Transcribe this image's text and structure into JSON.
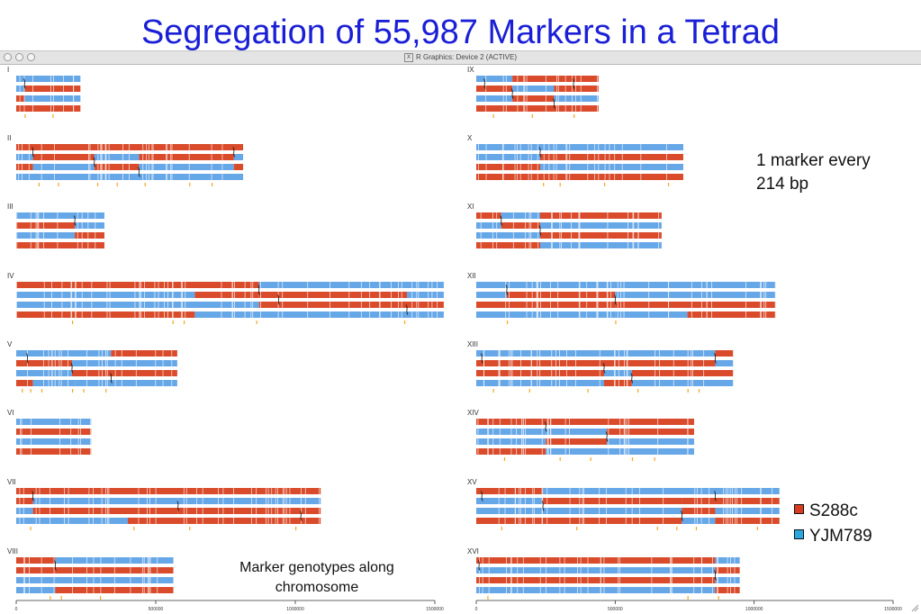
{
  "page_title": "Segregation of 55,987 Markers in a Tetrad",
  "window": {
    "title": "R Graphics: Device 2 (ACTIVE)",
    "title_icon": "x11-icon"
  },
  "annotation_density": [
    "1 marker every",
    "214 bp"
  ],
  "caption": "Marker genotypes along chromosome",
  "legend": [
    {
      "label": "S288c",
      "color": "#d93b1f"
    },
    {
      "label": "YJM789",
      "color": "#2ba7e0"
    }
  ],
  "colors": {
    "S288c": "#d94b2b",
    "YJM789": "#66a7e8",
    "crossover": "#111111",
    "tick": "#f5a623"
  },
  "chart_data": {
    "type": "heatmap",
    "x_axis": {
      "ticks": [
        0,
        500000,
        1000000,
        1500000
      ],
      "tick_labels": [
        "0",
        "500000",
        "1000000",
        "1500000"
      ],
      "xlim": [
        0,
        1500000
      ]
    },
    "strands_per_chromosome": 4,
    "chromosomes": [
      {
        "name": "I",
        "length": 230000,
        "tracks": [
          [
            [
              0,
              230000,
              "Y"
            ]
          ],
          [
            [
              0,
              30000,
              "Y"
            ],
            [
              30000,
              230000,
              "S"
            ]
          ],
          [
            [
              0,
              30000,
              "S"
            ],
            [
              30000,
              230000,
              "Y"
            ]
          ],
          [
            [
              0,
              230000,
              "S"
            ]
          ]
        ],
        "crossovers": [
          30000
        ],
        "conversions": [
          30000,
          130000
        ]
      },
      {
        "name": "II",
        "length": 813000,
        "tracks": [
          [
            [
              0,
              813000,
              "S"
            ]
          ],
          [
            [
              0,
              60000,
              "Y"
            ],
            [
              60000,
              280000,
              "S"
            ],
            [
              280000,
              440000,
              "Y"
            ],
            [
              440000,
              780000,
              "S"
            ],
            [
              780000,
              813000,
              "Y"
            ]
          ],
          [
            [
              0,
              60000,
              "S"
            ],
            [
              60000,
              280000,
              "Y"
            ],
            [
              280000,
              440000,
              "S"
            ],
            [
              440000,
              780000,
              "Y"
            ],
            [
              780000,
              813000,
              "S"
            ]
          ],
          [
            [
              0,
              813000,
              "Y"
            ]
          ]
        ],
        "crossovers": [
          60000,
          280000,
          440000,
          780000
        ],
        "conversions": [
          80000,
          150000,
          290000,
          360000,
          460000,
          620000,
          700000
        ]
      },
      {
        "name": "III",
        "length": 316000,
        "tracks": [
          [
            [
              0,
              316000,
              "Y"
            ]
          ],
          [
            [
              0,
              210000,
              "S"
            ],
            [
              210000,
              316000,
              "Y"
            ]
          ],
          [
            [
              0,
              210000,
              "Y"
            ],
            [
              210000,
              316000,
              "S"
            ]
          ],
          [
            [
              0,
              316000,
              "S"
            ]
          ]
        ],
        "crossovers": [
          210000
        ],
        "conversions": []
      },
      {
        "name": "IV",
        "length": 1532000,
        "tracks": [
          [
            [
              0,
              870000,
              "S"
            ],
            [
              870000,
              1400000,
              "Y"
            ],
            [
              1400000,
              1532000,
              "Y"
            ]
          ],
          [
            [
              0,
              640000,
              "Y"
            ],
            [
              640000,
              870000,
              "S"
            ],
            [
              870000,
              1400000,
              "S"
            ],
            [
              1400000,
              1532000,
              "Y"
            ]
          ],
          [
            [
              0,
              870000,
              "Y"
            ],
            [
              870000,
              940000,
              "S"
            ],
            [
              940000,
              1532000,
              "S"
            ]
          ],
          [
            [
              0,
              540000,
              "S"
            ],
            [
              540000,
              640000,
              "S"
            ],
            [
              640000,
              940000,
              "Y"
            ],
            [
              940000,
              1532000,
              "Y"
            ]
          ]
        ],
        "crossovers": [
          870000,
          940000,
          1400000
        ],
        "conversions": [
          200000,
          560000,
          600000,
          860000,
          1390000
        ]
      },
      {
        "name": "V",
        "length": 577000,
        "tracks": [
          [
            [
              0,
              340000,
              "Y"
            ],
            [
              340000,
              577000,
              "S"
            ]
          ],
          [
            [
              0,
              200000,
              "S"
            ],
            [
              200000,
              577000,
              "Y"
            ]
          ],
          [
            [
              0,
              200000,
              "Y"
            ],
            [
              200000,
              577000,
              "S"
            ]
          ],
          [
            [
              0,
              60000,
              "S"
            ],
            [
              60000,
              210000,
              "Y"
            ],
            [
              210000,
              577000,
              "Y"
            ]
          ]
        ],
        "crossovers": [
          40000,
          200000,
          340000
        ],
        "conversions": [
          20000,
          50000,
          90000,
          200000,
          240000,
          320000
        ]
      },
      {
        "name": "VI",
        "length": 270000,
        "tracks": [
          [
            [
              0,
              270000,
              "Y"
            ]
          ],
          [
            [
              0,
              270000,
              "S"
            ]
          ],
          [
            [
              0,
              270000,
              "Y"
            ]
          ],
          [
            [
              0,
              270000,
              "S"
            ]
          ]
        ],
        "crossovers": [],
        "conversions": []
      },
      {
        "name": "VII",
        "length": 1091000,
        "tracks": [
          [
            [
              0,
              1091000,
              "S"
            ]
          ],
          [
            [
              0,
              60000,
              "S"
            ],
            [
              60000,
              580000,
              "Y"
            ],
            [
              580000,
              1020000,
              "Y"
            ],
            [
              1020000,
              1091000,
              "Y"
            ]
          ],
          [
            [
              0,
              60000,
              "Y"
            ],
            [
              60000,
              580000,
              "S"
            ],
            [
              580000,
              1020000,
              "S"
            ],
            [
              1020000,
              1091000,
              "S"
            ]
          ],
          [
            [
              0,
              400000,
              "Y"
            ],
            [
              400000,
              1091000,
              "S"
            ]
          ]
        ],
        "crossovers": [
          60000,
          580000,
          1020000
        ],
        "conversions": [
          50000,
          420000,
          620000,
          1000000
        ]
      },
      {
        "name": "VIII",
        "length": 563000,
        "tracks": [
          [
            [
              0,
              140000,
              "S"
            ],
            [
              140000,
              563000,
              "Y"
            ]
          ],
          [
            [
              0,
              140000,
              "S"
            ],
            [
              140000,
              563000,
              "S"
            ]
          ],
          [
            [
              0,
              140000,
              "Y"
            ],
            [
              140000,
              563000,
              "Y"
            ]
          ],
          [
            [
              0,
              140000,
              "Y"
            ],
            [
              140000,
              563000,
              "S"
            ]
          ]
        ],
        "crossovers": [
          140000
        ],
        "conversions": [
          120000,
          160000,
          300000
        ]
      },
      {
        "name": "IX",
        "length": 440000,
        "tracks": [
          [
            [
              0,
              130000,
              "Y"
            ],
            [
              130000,
              440000,
              "S"
            ]
          ],
          [
            [
              0,
              130000,
              "S"
            ],
            [
              130000,
              280000,
              "Y"
            ],
            [
              280000,
              440000,
              "S"
            ]
          ],
          [
            [
              0,
              130000,
              "Y"
            ],
            [
              130000,
              280000,
              "S"
            ],
            [
              280000,
              440000,
              "Y"
            ]
          ],
          [
            [
              0,
              440000,
              "S"
            ]
          ]
        ],
        "crossovers": [
          30000,
          130000,
          280000,
          350000
        ],
        "conversions": [
          60000,
          200000,
          350000
        ]
      },
      {
        "name": "X",
        "length": 745000,
        "tracks": [
          [
            [
              0,
              745000,
              "Y"
            ]
          ],
          [
            [
              0,
              230000,
              "Y"
            ],
            [
              230000,
              745000,
              "S"
            ]
          ],
          [
            [
              0,
              230000,
              "S"
            ],
            [
              230000,
              745000,
              "Y"
            ]
          ],
          [
            [
              0,
              745000,
              "S"
            ]
          ]
        ],
        "crossovers": [
          230000
        ],
        "conversions": [
          240000,
          300000,
          460000,
          690000
        ]
      },
      {
        "name": "XI",
        "length": 667000,
        "tracks": [
          [
            [
              0,
              90000,
              "S"
            ],
            [
              90000,
              230000,
              "Y"
            ],
            [
              230000,
              667000,
              "S"
            ]
          ],
          [
            [
              0,
              90000,
              "Y"
            ],
            [
              90000,
              230000,
              "S"
            ],
            [
              230000,
              667000,
              "Y"
            ]
          ],
          [
            [
              0,
              230000,
              "Y"
            ],
            [
              230000,
              667000,
              "S"
            ]
          ],
          [
            [
              0,
              230000,
              "S"
            ],
            [
              230000,
              667000,
              "Y"
            ]
          ]
        ],
        "crossovers": [
          90000,
          230000
        ],
        "conversions": []
      },
      {
        "name": "XII",
        "length": 1078000,
        "tracks": [
          [
            [
              0,
              110000,
              "Y"
            ],
            [
              110000,
              1078000,
              "Y"
            ]
          ],
          [
            [
              0,
              110000,
              "Y"
            ],
            [
              110000,
              500000,
              "S"
            ],
            [
              500000,
              1078000,
              "Y"
            ]
          ],
          [
            [
              0,
              500000,
              "S"
            ],
            [
              500000,
              1078000,
              "S"
            ]
          ],
          [
            [
              0,
              500000,
              "Y"
            ],
            [
              500000,
              760000,
              "Y"
            ],
            [
              760000,
              1078000,
              "S"
            ]
          ]
        ],
        "crossovers": [
          110000,
          500000
        ],
        "conversions": [
          110000,
          500000
        ]
      },
      {
        "name": "XIII",
        "length": 924000,
        "tracks": [
          [
            [
              0,
              860000,
              "Y"
            ],
            [
              860000,
              924000,
              "S"
            ]
          ],
          [
            [
              0,
              860000,
              "S"
            ],
            [
              860000,
              924000,
              "Y"
            ]
          ],
          [
            [
              0,
              460000,
              "S"
            ],
            [
              460000,
              560000,
              "Y"
            ],
            [
              560000,
              924000,
              "S"
            ]
          ],
          [
            [
              0,
              460000,
              "Y"
            ],
            [
              460000,
              560000,
              "S"
            ],
            [
              560000,
              924000,
              "Y"
            ]
          ]
        ],
        "crossovers": [
          20000,
          460000,
          560000,
          860000
        ],
        "conversions": [
          60000,
          190000,
          400000,
          580000,
          760000,
          800000
        ]
      },
      {
        "name": "XIV",
        "length": 784000,
        "tracks": [
          [
            [
              0,
              784000,
              "S"
            ]
          ],
          [
            [
              0,
              470000,
              "Y"
            ],
            [
              470000,
              784000,
              "S"
            ]
          ],
          [
            [
              0,
              250000,
              "Y"
            ],
            [
              250000,
              470000,
              "S"
            ],
            [
              470000,
              784000,
              "Y"
            ]
          ],
          [
            [
              0,
              250000,
              "S"
            ],
            [
              250000,
              784000,
              "Y"
            ]
          ]
        ],
        "crossovers": [
          250000,
          470000
        ],
        "conversions": [
          100000,
          300000,
          410000,
          560000,
          640000
        ]
      },
      {
        "name": "XV",
        "length": 1091000,
        "tracks": [
          [
            [
              0,
              240000,
              "S"
            ],
            [
              240000,
              1091000,
              "Y"
            ]
          ],
          [
            [
              0,
              240000,
              "Y"
            ],
            [
              240000,
              740000,
              "S"
            ],
            [
              740000,
              1091000,
              "S"
            ]
          ],
          [
            [
              0,
              740000,
              "Y"
            ],
            [
              740000,
              860000,
              "S"
            ],
            [
              860000,
              1091000,
              "Y"
            ]
          ],
          [
            [
              0,
              740000,
              "S"
            ],
            [
              740000,
              860000,
              "Y"
            ],
            [
              860000,
              1091000,
              "S"
            ]
          ]
        ],
        "crossovers": [
          20000,
          240000,
          740000,
          860000
        ],
        "conversions": [
          90000,
          360000,
          650000,
          720000,
          790000,
          1010000
        ]
      },
      {
        "name": "XVI",
        "length": 948000,
        "tracks": [
          [
            [
              0,
              860000,
              "S"
            ],
            [
              860000,
              948000,
              "Y"
            ]
          ],
          [
            [
              0,
              860000,
              "Y"
            ],
            [
              860000,
              948000,
              "S"
            ]
          ],
          [
            [
              0,
              860000,
              "S"
            ],
            [
              860000,
              948000,
              "Y"
            ]
          ],
          [
            [
              0,
              860000,
              "Y"
            ],
            [
              860000,
              948000,
              "S"
            ]
          ]
        ],
        "crossovers": [
          10000,
          860000
        ],
        "conversions": [
          40000,
          760000,
          870000
        ]
      }
    ]
  }
}
